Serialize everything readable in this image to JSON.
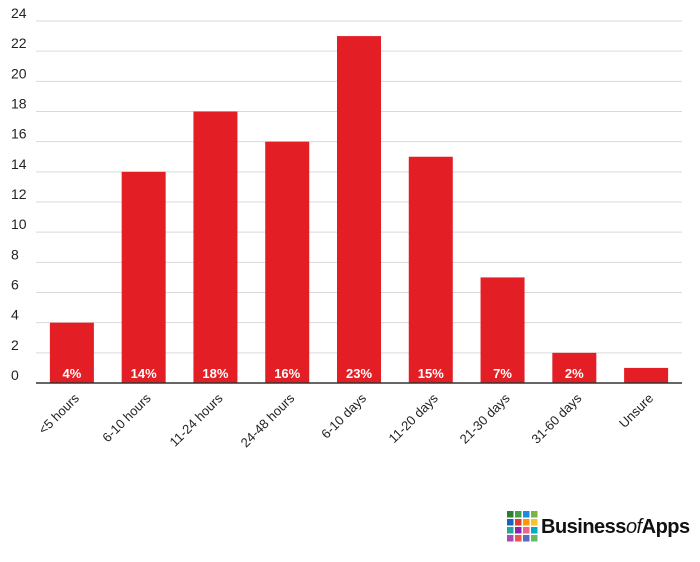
{
  "chart_data": {
    "type": "bar",
    "categories": [
      "<5 hours",
      "6-10 hours",
      "11-24 hours",
      "24-48 hours",
      "6-10 days",
      "11-20 days",
      "21-30 days",
      "31-60 days",
      "Unsure"
    ],
    "values": [
      4,
      14,
      18,
      16,
      23,
      15,
      7,
      2,
      1
    ],
    "data_labels": [
      "4%",
      "14%",
      "18%",
      "16%",
      "23%",
      "15%",
      "7%",
      "2%",
      ""
    ],
    "ylim": [
      0,
      24
    ],
    "yticks": [
      0,
      2,
      4,
      6,
      8,
      10,
      12,
      14,
      16,
      18,
      20,
      22,
      24
    ],
    "grid": true,
    "bar_color": "#e31e24",
    "grid_color": "#d9d9d9",
    "axis_color": "#333333"
  },
  "branding": {
    "logo_part1": "Business",
    "logo_part2": "of",
    "logo_part3": "Apps",
    "logo_colors": [
      "#2e7d32",
      "#43a047",
      "#1e88e5",
      "#7cb342",
      "#1565c0",
      "#e53935",
      "#ff9800",
      "#fbc02d",
      "#26a69a",
      "#8e24aa",
      "#f06292",
      "#00acc1",
      "#ab47bc",
      "#ef5350",
      "#5c6bc0",
      "#66bb6a"
    ]
  }
}
